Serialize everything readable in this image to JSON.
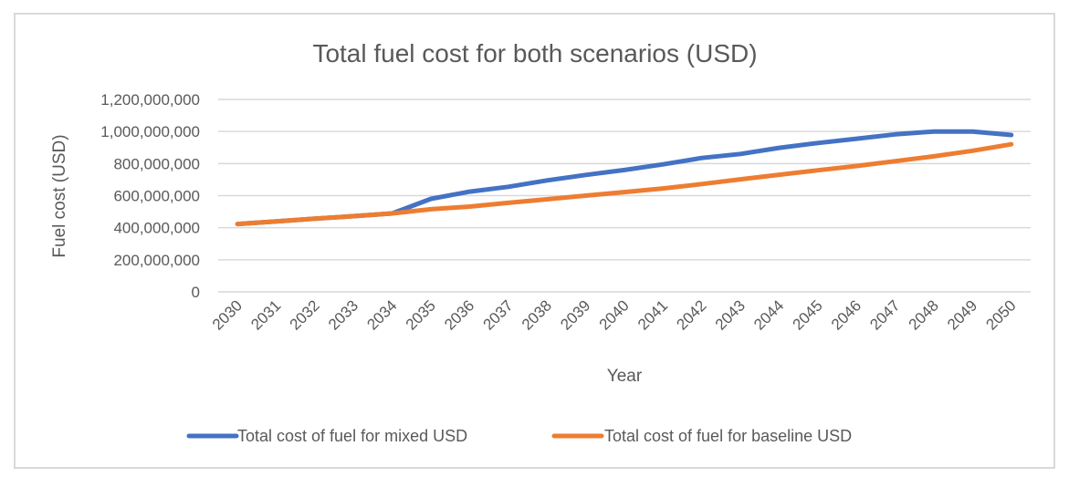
{
  "chart_data": {
    "type": "line",
    "title": "Total fuel cost for both scenarios (USD)",
    "xlabel": "Year",
    "ylabel": "Fuel cost (USD)",
    "ylim": [
      0,
      1200000000
    ],
    "yticks": [
      0,
      200000000,
      400000000,
      600000000,
      800000000,
      1000000000,
      1200000000
    ],
    "ytick_labels": [
      "0",
      "200,000,000",
      "400,000,000",
      "600,000,000",
      "800,000,000",
      "1,000,000,000",
      "1,200,000,000"
    ],
    "grid": true,
    "legend_position": "bottom",
    "categories": [
      "2030",
      "2031",
      "2032",
      "2033",
      "2034",
      "2035",
      "2036",
      "2037",
      "2038",
      "2039",
      "2040",
      "2041",
      "2042",
      "2043",
      "2044",
      "2045",
      "2046",
      "2047",
      "2048",
      "2049",
      "2050"
    ],
    "series": [
      {
        "name": "Total cost of fuel for mixed USD",
        "color": "#4472c4",
        "values": [
          423000000,
          439000000,
          456000000,
          472000000,
          489000000,
          580000000,
          625000000,
          655000000,
          695000000,
          729000000,
          760000000,
          795000000,
          835000000,
          860000000,
          898000000,
          928000000,
          955000000,
          982000000,
          1000000000,
          1000000000,
          978000000
        ]
      },
      {
        "name": "Total cost of fuel for baseline USD",
        "color": "#ed7d31",
        "values": [
          423000000,
          439000000,
          456000000,
          472000000,
          489000000,
          515000000,
          532000000,
          555000000,
          577000000,
          600000000,
          622000000,
          645000000,
          672000000,
          702000000,
          730000000,
          758000000,
          785000000,
          815000000,
          845000000,
          880000000,
          920000000
        ]
      }
    ]
  }
}
